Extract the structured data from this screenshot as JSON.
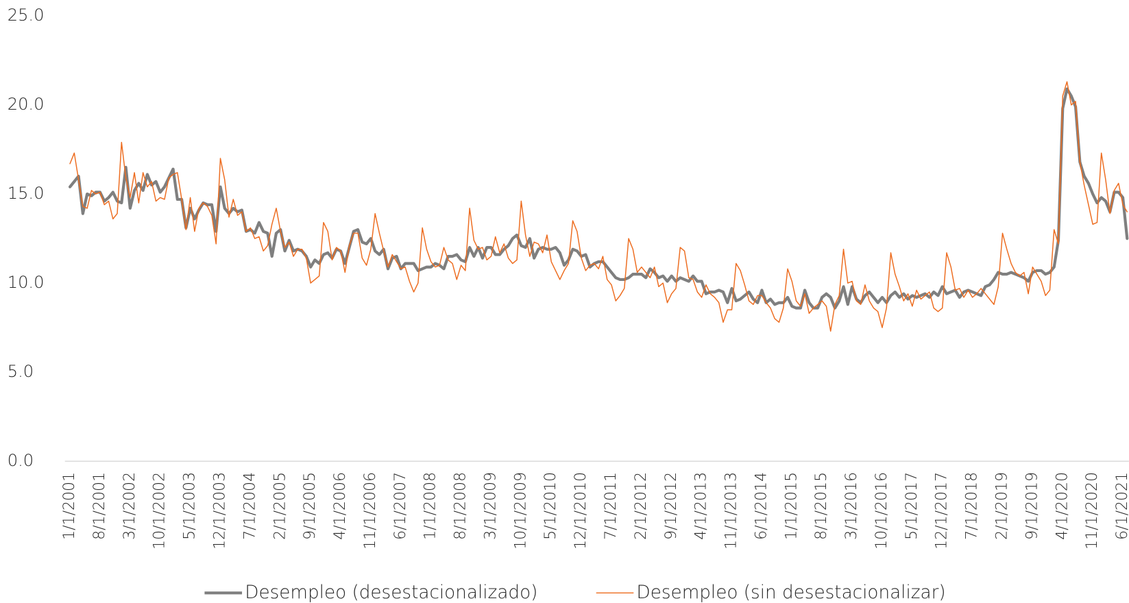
{
  "chart_data": {
    "type": "line",
    "categories": [
      "1/1/2001",
      null,
      null,
      null,
      null,
      null,
      null,
      "8/1/2001",
      null,
      null,
      null,
      null,
      null,
      null,
      "3/1/2002",
      null,
      null,
      null,
      null,
      null,
      null,
      "10/1/2002",
      null,
      null,
      null,
      null,
      null,
      null,
      "5/1/2003",
      null,
      null,
      null,
      null,
      null,
      null,
      "12/1/2003",
      null,
      null,
      null,
      null,
      null,
      null,
      "7/1/2004",
      null,
      null,
      null,
      null,
      null,
      null,
      "2/1/2005",
      null,
      null,
      null,
      null,
      null,
      null,
      "9/1/2005",
      null,
      null,
      null,
      null,
      null,
      null,
      "4/1/2006",
      null,
      null,
      null,
      null,
      null,
      null,
      "11/1/2006",
      null,
      null,
      null,
      null,
      null,
      null,
      "6/1/2007",
      null,
      null,
      null,
      null,
      null,
      null,
      "1/1/2008",
      null,
      null,
      null,
      null,
      null,
      null,
      "8/1/2008",
      null,
      null,
      null,
      null,
      null,
      null,
      "3/1/2009",
      null,
      null,
      null,
      null,
      null,
      null,
      "10/1/2009",
      null,
      null,
      null,
      null,
      null,
      null,
      "5/1/2010",
      null,
      null,
      null,
      null,
      null,
      null,
      "12/1/2010",
      null,
      null,
      null,
      null,
      null,
      null,
      "7/1/2011",
      null,
      null,
      null,
      null,
      null,
      null,
      "2/1/2012",
      null,
      null,
      null,
      null,
      null,
      null,
      "9/1/2012",
      null,
      null,
      null,
      null,
      null,
      null,
      "4/1/2013",
      null,
      null,
      null,
      null,
      null,
      null,
      "11/1/2013",
      null,
      null,
      null,
      null,
      null,
      null,
      "6/1/2014",
      null,
      null,
      null,
      null,
      null,
      null,
      "1/1/2015",
      null,
      null,
      null,
      null,
      null,
      null,
      "8/1/2015",
      null,
      null,
      null,
      null,
      null,
      null,
      "3/1/2016",
      null,
      null,
      null,
      null,
      null,
      null,
      "10/1/2016",
      null,
      null,
      null,
      null,
      null,
      null,
      "5/1/2017",
      null,
      null,
      null,
      null,
      null,
      null,
      "12/1/2017",
      null,
      null,
      null,
      null,
      null,
      null,
      "7/1/2018",
      null,
      null,
      null,
      null,
      null,
      null,
      "2/1/2019",
      null,
      null,
      null,
      null,
      null,
      null,
      "9/1/2019",
      null,
      null,
      null,
      null,
      null,
      null,
      "4/1/2020",
      null,
      null,
      null,
      null,
      null,
      null,
      "11/1/2020",
      null,
      null,
      null,
      null,
      null,
      null,
      "6/1/2021",
      null
    ],
    "series": [
      {
        "name": "Desempleo (desestacionalizado)",
        "color": "#7f7f7f",
        "width": 4,
        "values": [
          15.4,
          15.7,
          16.0,
          13.9,
          15.0,
          14.9,
          15.1,
          15.1,
          14.6,
          14.8,
          15.1,
          14.6,
          14.5,
          16.5,
          14.2,
          15.2,
          15.6,
          15.2,
          16.1,
          15.5,
          15.7,
          15.1,
          15.4,
          15.9,
          16.4,
          14.7,
          14.7,
          13.1,
          14.2,
          13.6,
          14.1,
          14.5,
          14.4,
          14.4,
          12.9,
          15.4,
          14.2,
          13.9,
          14.2,
          14.0,
          14.1,
          12.9,
          13.0,
          12.8,
          13.4,
          12.9,
          12.8,
          11.5,
          12.8,
          13.0,
          11.8,
          12.4,
          11.8,
          11.9,
          11.8,
          11.5,
          10.9,
          11.3,
          11.1,
          11.6,
          11.7,
          11.4,
          11.9,
          11.8,
          11.1,
          12.0,
          12.9,
          13.0,
          12.3,
          12.2,
          12.5,
          11.8,
          11.6,
          11.9,
          10.8,
          11.4,
          11.5,
          10.8,
          11.1,
          11.1,
          11.1,
          10.7,
          10.8,
          10.9,
          10.9,
          11.1,
          11.0,
          10.8,
          11.5,
          11.5,
          11.6,
          11.3,
          11.2,
          12.0,
          11.5,
          12.0,
          11.4,
          12.0,
          12.0,
          11.6,
          11.6,
          11.9,
          12.1,
          12.5,
          12.7,
          12.1,
          12.0,
          12.5,
          11.4,
          11.9,
          12.0,
          11.9,
          11.9,
          12.0,
          11.7,
          11.0,
          11.3,
          11.9,
          11.8,
          11.5,
          11.6,
          10.9,
          11.1,
          11.2,
          11.2,
          10.9,
          10.6,
          10.3,
          10.2,
          10.2,
          10.3,
          10.5,
          10.5,
          10.5,
          10.3,
          10.8,
          10.6,
          10.3,
          10.4,
          10.1,
          10.4,
          10.1,
          10.3,
          10.2,
          10.1,
          10.4,
          10.1,
          10.1,
          9.4,
          9.5,
          9.5,
          9.6,
          9.5,
          8.9,
          9.7,
          9.0,
          9.1,
          9.3,
          9.5,
          9.1,
          8.9,
          9.6,
          8.9,
          9.1,
          8.8,
          8.9,
          8.9,
          9.2,
          8.7,
          8.6,
          8.6,
          9.6,
          8.9,
          8.6,
          8.6,
          9.2,
          9.4,
          9.2,
          8.6,
          9.0,
          9.8,
          8.8,
          9.8,
          9.1,
          8.9,
          9.3,
          9.5,
          9.2,
          8.9,
          9.2,
          8.9,
          9.3,
          9.5,
          9.2,
          9.4,
          9.1,
          9.3,
          9.2,
          9.3,
          9.4,
          9.2,
          9.5,
          9.3,
          9.8,
          9.4,
          9.5,
          9.6,
          9.2,
          9.5,
          9.6,
          9.5,
          9.4,
          9.3,
          9.8,
          9.9,
          10.2,
          10.6,
          10.5,
          10.5,
          10.6,
          10.5,
          10.4,
          10.3,
          10.1,
          10.6,
          10.7,
          10.7,
          10.5,
          10.6,
          10.9,
          12.4,
          19.8,
          20.9,
          20.5,
          19.9,
          16.8,
          16.0,
          15.6,
          15.0,
          14.5,
          14.8,
          14.6,
          14.0,
          15.1,
          15.1,
          14.8,
          12.5
        ]
      },
      {
        "name": "Desempleo (sin desestacionalizar)",
        "color": "#ed6c1f",
        "width": 1.4,
        "values": [
          16.7,
          17.3,
          15.8,
          14.3,
          14.2,
          15.2,
          15.0,
          15.1,
          14.4,
          14.6,
          13.6,
          13.9,
          17.9,
          15.9,
          14.8,
          16.2,
          14.5,
          16.2,
          15.4,
          15.7,
          14.6,
          14.8,
          14.7,
          15.9,
          16.1,
          16.2,
          14.7,
          13.0,
          14.8,
          12.9,
          14.2,
          14.5,
          14.3,
          13.8,
          12.2,
          17.0,
          15.8,
          13.7,
          14.7,
          13.8,
          14.0,
          12.9,
          13.1,
          12.5,
          12.6,
          11.8,
          12.1,
          13.3,
          14.2,
          12.9,
          12.0,
          12.3,
          11.5,
          11.9,
          11.9,
          11.4,
          10.0,
          10.2,
          10.4,
          13.4,
          12.9,
          11.3,
          12.0,
          11.8,
          10.6,
          12.1,
          12.8,
          12.8,
          11.4,
          11.0,
          11.9,
          13.9,
          12.8,
          11.8,
          10.9,
          11.6,
          11.2,
          10.8,
          10.9,
          10.1,
          9.5,
          10.0,
          13.1,
          11.9,
          11.2,
          10.9,
          11.0,
          12.0,
          11.3,
          11.1,
          10.2,
          11.0,
          10.7,
          14.2,
          12.4,
          11.9,
          12.0,
          11.3,
          11.5,
          12.6,
          11.7,
          12.2,
          11.4,
          11.1,
          11.3,
          14.6,
          12.7,
          11.5,
          12.3,
          12.2,
          11.7,
          12.7,
          11.2,
          10.7,
          10.2,
          10.7,
          11.1,
          13.5,
          12.9,
          11.4,
          10.7,
          11.0,
          11.1,
          10.8,
          11.5,
          10.2,
          9.9,
          9.0,
          9.3,
          9.7,
          12.5,
          11.9,
          10.6,
          10.9,
          10.6,
          10.3,
          10.9,
          9.8,
          10.0,
          8.9,
          9.4,
          9.7,
          12.0,
          11.8,
          10.3,
          10.2,
          9.5,
          9.2,
          9.9,
          9.4,
          9.2,
          8.9,
          7.8,
          8.5,
          8.5,
          11.1,
          10.7,
          9.9,
          9.0,
          8.8,
          9.3,
          9.3,
          8.9,
          8.6,
          8.0,
          7.8,
          8.6,
          10.8,
          10.1,
          9.0,
          8.7,
          9.4,
          8.3,
          8.6,
          8.8,
          9.0,
          8.7,
          7.3,
          8.8,
          9.3,
          11.9,
          10.0,
          10.1,
          9.0,
          8.8,
          9.9,
          9.0,
          8.6,
          8.4,
          7.5,
          8.6,
          11.7,
          10.5,
          9.8,
          9.0,
          9.4,
          8.7,
          9.6,
          9.1,
          9.3,
          9.5,
          8.6,
          8.4,
          8.6,
          11.7,
          10.9,
          9.6,
          9.7,
          9.2,
          9.6,
          9.2,
          9.4,
          9.7,
          9.4,
          9.1,
          8.8,
          9.8,
          12.8,
          11.9,
          11.1,
          10.6,
          10.4,
          10.6,
          9.4,
          10.9,
          10.5,
          10.1,
          9.3,
          9.6,
          13.0,
          12.2,
          20.5,
          21.3,
          20.0,
          20.2,
          16.8,
          15.5,
          14.4,
          13.3,
          13.4,
          17.3,
          15.8,
          13.9,
          15.2,
          15.6,
          14.4,
          14.0
        ]
      }
    ],
    "ylim": [
      0,
      25
    ],
    "yticks": [
      {
        "value": 0,
        "label": "0.0"
      },
      {
        "value": 5,
        "label": "5.0"
      },
      {
        "value": 10,
        "label": "10.0"
      },
      {
        "value": 15,
        "label": "15.0"
      },
      {
        "value": 20,
        "label": "20.0"
      },
      {
        "value": 25,
        "label": "25.0"
      }
    ],
    "grid": false,
    "legend": "bottom"
  }
}
